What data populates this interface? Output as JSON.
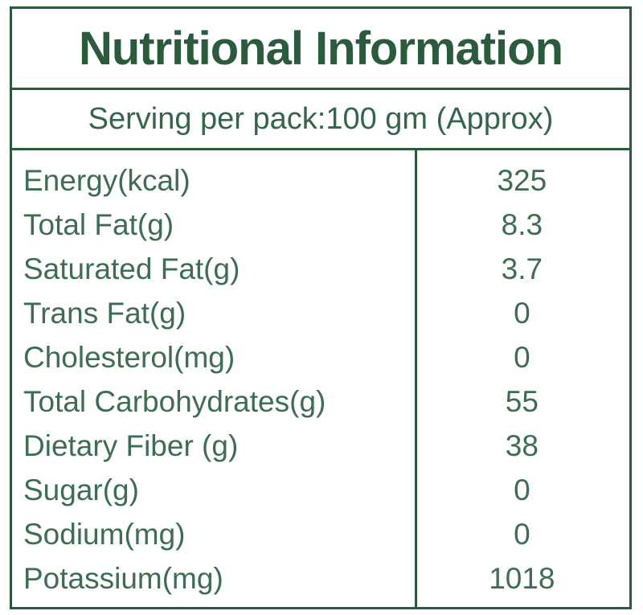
{
  "label": {
    "title": "Nutritional Information",
    "serving_info": "Serving per pack:100 gm (Approx)",
    "colors": {
      "border_green": "#2a5b3c",
      "title_text": "#2a5b3c",
      "body_text": "#3d6e51",
      "background": "#ffffff"
    },
    "rows": [
      {
        "name": "Energy(kcal)",
        "value": "325"
      },
      {
        "name": "Total Fat(g)",
        "value": "8.3"
      },
      {
        "name": "Saturated Fat(g)",
        "value": "3.7"
      },
      {
        "name": "Trans Fat(g)",
        "value": "0"
      },
      {
        "name": "Cholesterol(mg)",
        "value": "0"
      },
      {
        "name": "Total Carbohydrates(g)",
        "value": "55"
      },
      {
        "name": "Dietary Fiber (g)",
        "value": "38"
      },
      {
        "name": "Sugar(g)",
        "value": "0"
      },
      {
        "name": "Sodium(mg)",
        "value": "0"
      },
      {
        "name": "Potassium(mg)",
        "value": "1018"
      }
    ]
  }
}
